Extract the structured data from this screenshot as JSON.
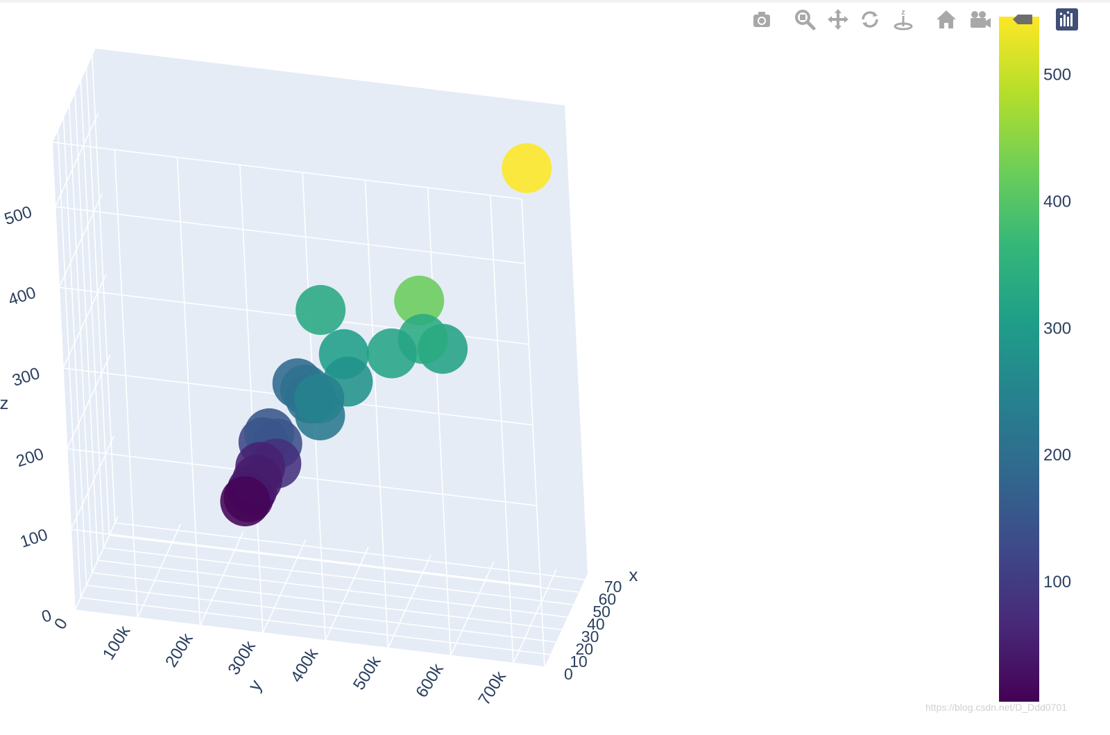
{
  "modebar": {
    "items": [
      {
        "icon": "camera-icon"
      },
      {
        "icon": "zoom-icon"
      },
      {
        "icon": "pan-icon"
      },
      {
        "icon": "orbit-rotate-icon"
      },
      {
        "icon": "turntable-rotate-icon"
      },
      {
        "icon": "home-icon"
      },
      {
        "icon": "camera-view-icon"
      },
      {
        "icon": "hover-label-icon"
      },
      {
        "icon": "plotly-logo-icon"
      }
    ]
  },
  "watermark": "https://blog.csdn.net/D_Ddd0701",
  "chart_data": {
    "type": "scatter3d",
    "colorscale": "Viridis",
    "colors": {
      "scene_bg": "#e5ecf6",
      "grid": "#ffffff",
      "text": "#2a3f5f",
      "viridis": [
        "#440154",
        "#482878",
        "#3e4989",
        "#31688e",
        "#26828e",
        "#1f9e89",
        "#35b779",
        "#6ece58",
        "#b5de2b",
        "#fde725"
      ]
    },
    "axes": {
      "x": {
        "label": "x",
        "range": [
          0,
          75
        ],
        "ticks": [
          "0",
          "10",
          "20",
          "30",
          "40",
          "50",
          "60",
          "70"
        ]
      },
      "y": {
        "label": "y",
        "range": [
          0,
          750000
        ],
        "ticks": [
          "0",
          "100k",
          "200k",
          "300k",
          "400k",
          "500k",
          "600k",
          "700k"
        ]
      },
      "z": {
        "label": "z",
        "range": [
          0,
          580
        ],
        "ticks": [
          "0",
          "100",
          "200",
          "300",
          "400",
          "500"
        ]
      }
    },
    "colorbar": {
      "range": [
        5,
        545
      ],
      "ticks": [
        "100",
        "200",
        "300",
        "400",
        "500"
      ]
    },
    "points": [
      {
        "x": 2,
        "y": 280000,
        "z": 158,
        "c": 10
      },
      {
        "x": 3,
        "y": 285000,
        "z": 162,
        "c": 20
      },
      {
        "x": 4,
        "y": 290000,
        "z": 170,
        "c": 30
      },
      {
        "x": 3,
        "y": 300000,
        "z": 185,
        "c": 45
      },
      {
        "x": 4,
        "y": 305000,
        "z": 200,
        "c": 55
      },
      {
        "x": 5,
        "y": 330000,
        "z": 205,
        "c": 80
      },
      {
        "x": 6,
        "y": 310000,
        "z": 228,
        "c": 120
      },
      {
        "x": 6,
        "y": 320000,
        "z": 240,
        "c": 150
      },
      {
        "x": 8,
        "y": 330000,
        "z": 225,
        "c": 135
      },
      {
        "x": 9,
        "y": 400000,
        "z": 265,
        "c": 225
      },
      {
        "x": 10,
        "y": 385000,
        "z": 283,
        "c": 210
      },
      {
        "x": 9,
        "y": 378000,
        "z": 295,
        "c": 205
      },
      {
        "x": 10,
        "y": 365000,
        "z": 300,
        "c": 190
      },
      {
        "x": 9,
        "y": 400000,
        "z": 286,
        "c": 245
      },
      {
        "x": 11,
        "y": 445000,
        "z": 308,
        "c": 280
      },
      {
        "x": 12,
        "y": 440000,
        "z": 340,
        "c": 305
      },
      {
        "x": 13,
        "y": 405000,
        "z": 390,
        "c": 330
      },
      {
        "x": 14,
        "y": 515000,
        "z": 345,
        "c": 320
      },
      {
        "x": 15,
        "y": 565000,
        "z": 366,
        "c": 335
      },
      {
        "x": 16,
        "y": 595000,
        "z": 355,
        "c": 315
      },
      {
        "x": 17,
        "y": 560000,
        "z": 410,
        "c": 420
      },
      {
        "x": 30,
        "y": 730000,
        "z": 570,
        "c": 545
      }
    ]
  }
}
